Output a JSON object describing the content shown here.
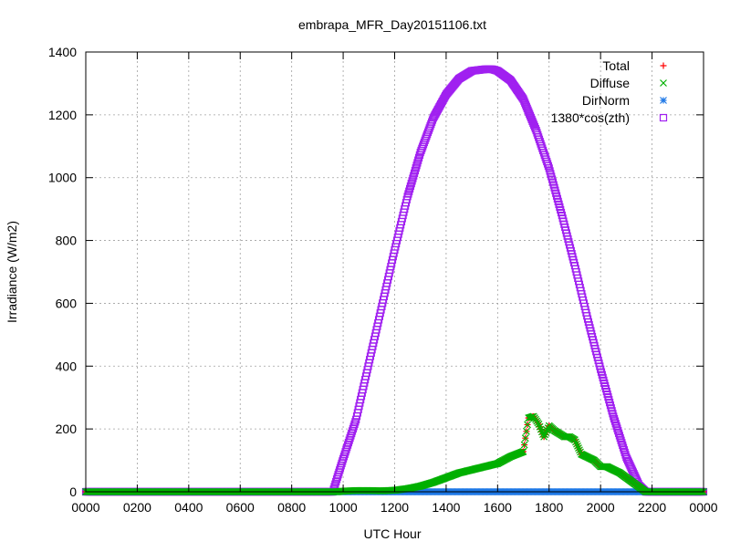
{
  "chart_data": {
    "type": "scatter",
    "title": "embrapa_MFR_Day20151106.txt",
    "xlabel": "UTC Hour",
    "ylabel": "Irradiance (W/m2)",
    "xlim": [
      0,
      2400
    ],
    "ylim": [
      0,
      1400
    ],
    "x_ticks": [
      "0000",
      "0200",
      "0400",
      "0600",
      "0800",
      "1000",
      "1200",
      "1400",
      "1600",
      "1800",
      "2000",
      "2200",
      "0000"
    ],
    "y_ticks": [
      "0",
      "200",
      "400",
      "600",
      "800",
      "1000",
      "1200",
      "1400"
    ],
    "grid": true,
    "legend_position": "top-right",
    "colors": {
      "total": "#ff0000",
      "diffuse": "#00b000",
      "dirnorm": "#1e78e6",
      "cos": "#a020f0"
    },
    "series": [
      {
        "name": "Total",
        "marker": "plus",
        "color": "#ff0000",
        "x": [
          0,
          950,
          975,
          1000,
          1050,
          1100,
          1150,
          1200,
          1250,
          1300,
          1350,
          1400,
          1450,
          1500,
          1550,
          1600,
          1650,
          1700,
          1720,
          1740,
          1760,
          1780,
          1800,
          1820,
          1840,
          1860,
          1880,
          1900,
          1925,
          1950,
          1975,
          2000,
          2025,
          2050,
          2075,
          2100,
          2125,
          2150,
          2175,
          2200,
          2400
        ],
        "y": [
          0,
          0,
          0,
          2,
          4,
          4,
          3,
          5,
          10,
          18,
          30,
          45,
          60,
          70,
          80,
          90,
          112,
          128,
          235,
          240,
          215,
          175,
          210,
          195,
          185,
          175,
          175,
          165,
          120,
          110,
          100,
          80,
          80,
          70,
          60,
          45,
          30,
          15,
          0,
          0,
          0
        ]
      },
      {
        "name": "Diffuse",
        "marker": "cross",
        "color": "#00b000",
        "x": [
          0,
          950,
          975,
          1000,
          1050,
          1100,
          1150,
          1200,
          1250,
          1300,
          1350,
          1400,
          1450,
          1500,
          1550,
          1600,
          1650,
          1700,
          1720,
          1740,
          1760,
          1780,
          1800,
          1820,
          1840,
          1860,
          1880,
          1900,
          1925,
          1950,
          1975,
          2000,
          2025,
          2050,
          2075,
          2100,
          2125,
          2150,
          2175,
          2200,
          2400
        ],
        "y": [
          0,
          0,
          0,
          2,
          4,
          4,
          3,
          5,
          10,
          18,
          30,
          45,
          60,
          70,
          80,
          90,
          112,
          128,
          235,
          240,
          215,
          175,
          210,
          195,
          185,
          175,
          175,
          165,
          120,
          110,
          100,
          80,
          80,
          70,
          60,
          45,
          30,
          15,
          0,
          0,
          0
        ]
      },
      {
        "name": "DirNorm",
        "marker": "star",
        "color": "#1e78e6",
        "x": [
          0,
          975,
          1000,
          1100,
          1200,
          1300,
          1400,
          1500,
          1600,
          1700,
          1800,
          1900,
          2000,
          2100,
          2175,
          2400
        ],
        "y": [
          0,
          0,
          0,
          0,
          0,
          0,
          0,
          0,
          0,
          0,
          0,
          0,
          0,
          0,
          0,
          0
        ]
      },
      {
        "name": "1380*cos(zth)",
        "marker": "square",
        "color": "#a020f0",
        "x": [
          0,
          960,
          975,
          1000,
          1050,
          1100,
          1150,
          1200,
          1250,
          1300,
          1350,
          1400,
          1450,
          1500,
          1550,
          1580,
          1600,
          1650,
          1700,
          1750,
          1800,
          1850,
          1900,
          1950,
          2000,
          2050,
          2100,
          2150,
          2175,
          2185,
          2400
        ],
        "y": [
          0,
          0,
          40,
          105,
          230,
          410,
          590,
          770,
          940,
          1080,
          1190,
          1265,
          1315,
          1340,
          1345,
          1345,
          1340,
          1310,
          1250,
          1150,
          1030,
          880,
          720,
          550,
          390,
          240,
          110,
          20,
          0,
          0,
          0
        ]
      }
    ]
  }
}
